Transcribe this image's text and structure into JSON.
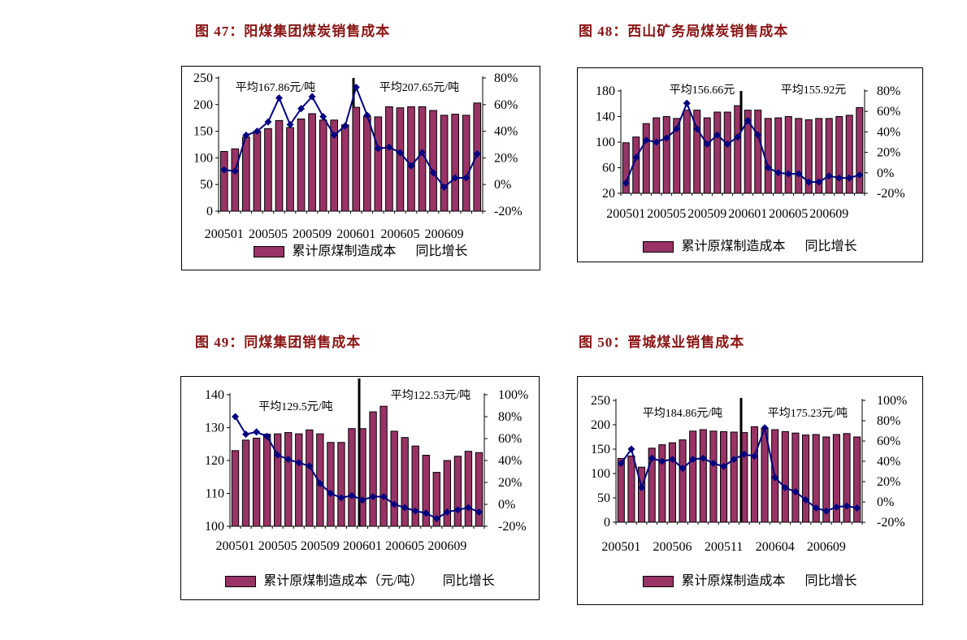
{
  "page": {
    "background": "#ffffff"
  },
  "styles": {
    "bar_fill": "#993366",
    "bar_stroke": "#000000",
    "line_color": "#000080",
    "divider_color": "#000000",
    "axis_color": "#000000",
    "text_color": "#000000",
    "title_color": "#8b1414",
    "chart_background": "#ffffff",
    "chart_border": "#000000"
  },
  "chart_data": [
    {
      "id": "fig47",
      "type": "bar+line",
      "title": "图 47：阳煤集团煤炭销售成本",
      "categories": [
        "200501",
        "200502",
        "200503",
        "200504",
        "200505",
        "200506",
        "200507",
        "200508",
        "200509",
        "200510",
        "200511",
        "200512",
        "200601",
        "200602",
        "200603",
        "200604",
        "200605",
        "200606",
        "200607",
        "200608",
        "200609",
        "200610",
        "200611",
        "200612"
      ],
      "series": [
        {
          "name": "累计原煤制造成本",
          "type": "bar",
          "axis": "left",
          "values": [
            112,
            117,
            139,
            150,
            155,
            170,
            157,
            173,
            183,
            171,
            171,
            162,
            195,
            178,
            177,
            196,
            194,
            196,
            196,
            189,
            180,
            182,
            180,
            203
          ]
        },
        {
          "name": "同比增长",
          "type": "line",
          "axis": "right",
          "values_pct": [
            11,
            10,
            37,
            40,
            47,
            65,
            45,
            57,
            66,
            51,
            37,
            44,
            73,
            52,
            27,
            28,
            24,
            14,
            24,
            9,
            -2,
            5,
            5,
            23
          ]
        }
      ],
      "left_axis": {
        "min": 0,
        "max": 250,
        "ticks": [
          0,
          50,
          100,
          150,
          200,
          250
        ]
      },
      "right_axis": {
        "min": -20,
        "max": 80,
        "ticks": [
          -20,
          0,
          20,
          40,
          60,
          80
        ],
        "suffix": "%"
      },
      "x_tick_labels": {
        "labels": [
          "200501",
          "200505",
          "200509",
          "200601",
          "200605",
          "200609"
        ],
        "slots": [
          0,
          4,
          8,
          12,
          16,
          20
        ]
      },
      "annotations": [
        "平均167.86元/吨",
        "平均207.65元/吨"
      ],
      "divider": {
        "after_category": "200512"
      },
      "legend": {
        "bar": "累计原煤制造成本",
        "line": "同比增长"
      }
    },
    {
      "id": "fig48",
      "type": "bar+line",
      "title": "图 48：西山矿务局煤炭销售成本",
      "categories": [
        "200501",
        "200502",
        "200503",
        "200504",
        "200505",
        "200506",
        "200507",
        "200508",
        "200509",
        "200510",
        "200511",
        "200512",
        "200601",
        "200602",
        "200603",
        "200604",
        "200605",
        "200606",
        "200607",
        "200608",
        "200609",
        "200610",
        "200611",
        "200612"
      ],
      "series": [
        {
          "name": "累计原煤制造成本",
          "type": "bar",
          "axis": "left",
          "values": [
            99,
            108,
            129,
            138,
            140,
            137,
            150,
            150,
            138,
            147,
            147,
            157,
            150,
            150,
            137,
            138,
            140,
            137,
            135,
            137,
            137,
            140,
            142,
            154
          ]
        },
        {
          "name": "同比增长",
          "type": "line",
          "axis": "right",
          "values_pct": [
            -10,
            15,
            32,
            30,
            34,
            43,
            68,
            43,
            28,
            37,
            28,
            35,
            51,
            37,
            5,
            0,
            -1,
            -1,
            -9,
            -9,
            -3,
            -5,
            -5,
            -2
          ]
        }
      ],
      "left_axis": {
        "min": 20,
        "max": 180,
        "ticks": [
          20,
          60,
          100,
          140,
          180
        ]
      },
      "right_axis": {
        "min": -20,
        "max": 80,
        "ticks": [
          -20,
          0,
          20,
          40,
          60,
          80
        ],
        "suffix": "%"
      },
      "x_tick_labels": {
        "labels": [
          "200501",
          "200505",
          "200509",
          "200601",
          "200605",
          "200609"
        ],
        "slots": [
          0,
          4,
          8,
          12,
          16,
          20
        ]
      },
      "annotations": [
        "平均156.66元",
        "平均155.92元"
      ],
      "divider": {
        "after_category": "200512"
      },
      "legend": {
        "bar": "累计原煤制造成本",
        "line": "同比增长"
      }
    },
    {
      "id": "fig49",
      "type": "bar+line",
      "title": "图 49：同煤集团销售成本",
      "categories": [
        "200501",
        "200502",
        "200503",
        "200504",
        "200505",
        "200506",
        "200507",
        "200508",
        "200509",
        "200510",
        "200511",
        "200512",
        "200601",
        "200602",
        "200603",
        "200604",
        "200605",
        "200606",
        "200607",
        "200608",
        "200609",
        "200610",
        "200611",
        "200612"
      ],
      "series": [
        {
          "name": "累计原煤制造成本（元/吨）",
          "type": "bar",
          "axis": "left",
          "values": [
            123,
            126.2,
            126.8,
            128,
            128.1,
            128.5,
            128.1,
            129.3,
            128.1,
            125.5,
            125.5,
            129.7,
            129.7,
            134.8,
            136.5,
            128.9,
            127,
            124.4,
            121.6,
            116.4,
            120,
            121.3,
            122.8,
            122.4
          ]
        },
        {
          "name": "同比增长",
          "type": "line",
          "axis": "right",
          "values_pct": [
            80,
            64,
            66,
            62,
            45,
            41,
            38,
            35,
            19,
            10,
            6,
            8,
            4,
            7,
            7,
            0,
            -3,
            -6,
            -8,
            -13,
            -7,
            -5,
            -3,
            -7
          ]
        }
      ],
      "left_axis": {
        "min": 100,
        "max": 140,
        "ticks": [
          100,
          110,
          120,
          130,
          140
        ]
      },
      "right_axis": {
        "min": -20,
        "max": 100,
        "ticks": [
          -20,
          0,
          20,
          40,
          60,
          80,
          100
        ],
        "suffix": "%"
      },
      "x_tick_labels": {
        "labels": [
          "200501",
          "200505",
          "200509",
          "200601",
          "200605",
          "200609"
        ],
        "slots": [
          0,
          4,
          8,
          12,
          16,
          20
        ]
      },
      "annotations": [
        "平均129.5元/吨",
        "平均122.53元/吨"
      ],
      "divider": {
        "after_category": "200512"
      },
      "legend": {
        "bar": "累计原煤制造成本（元/吨）",
        "line": "同比增长"
      }
    },
    {
      "id": "fig50",
      "type": "bar+line",
      "title": "图 50：晋城煤业销售成本",
      "categories": [
        "200501",
        "200502",
        "200503",
        "200504",
        "200505",
        "200506",
        "200507",
        "200508",
        "200509",
        "200510",
        "200511",
        "200512",
        "200601",
        "200602",
        "200603",
        "200604",
        "200605",
        "200606",
        "200607",
        "200608",
        "200609",
        "200610",
        "200611",
        "200612"
      ],
      "series": [
        {
          "name": "累计原煤制造成本",
          "type": "bar",
          "axis": "left",
          "values": [
            131,
            136,
            113,
            152,
            159,
            163,
            169,
            187,
            190,
            187,
            186,
            185,
            184,
            196,
            193,
            190,
            186,
            183,
            179,
            180,
            175,
            180,
            182,
            175
          ]
        },
        {
          "name": "同比增长",
          "type": "line",
          "axis": "right",
          "values_pct": [
            38,
            52,
            14,
            43,
            40,
            42,
            33,
            42,
            43,
            38,
            35,
            42,
            47,
            45,
            73,
            24,
            14,
            10,
            2,
            -6,
            -9,
            -5,
            -4,
            -6
          ]
        }
      ],
      "left_axis": {
        "min": 0,
        "max": 250,
        "ticks": [
          0,
          50,
          100,
          150,
          200,
          250
        ]
      },
      "right_axis": {
        "min": -20,
        "max": 100,
        "ticks": [
          -20,
          0,
          20,
          40,
          60,
          80,
          100
        ],
        "suffix": "%"
      },
      "x_tick_labels": {
        "labels": [
          "200501",
          "200506",
          "200511",
          "200604",
          "200609"
        ],
        "slots": [
          0,
          5,
          10,
          15,
          20
        ]
      },
      "annotations": [
        "平均184.86元/吨",
        "平均175.23元/吨"
      ],
      "divider": {
        "after_category": "200512"
      },
      "legend": {
        "bar": "累计原煤制造成本",
        "line": "同比增长"
      }
    }
  ]
}
